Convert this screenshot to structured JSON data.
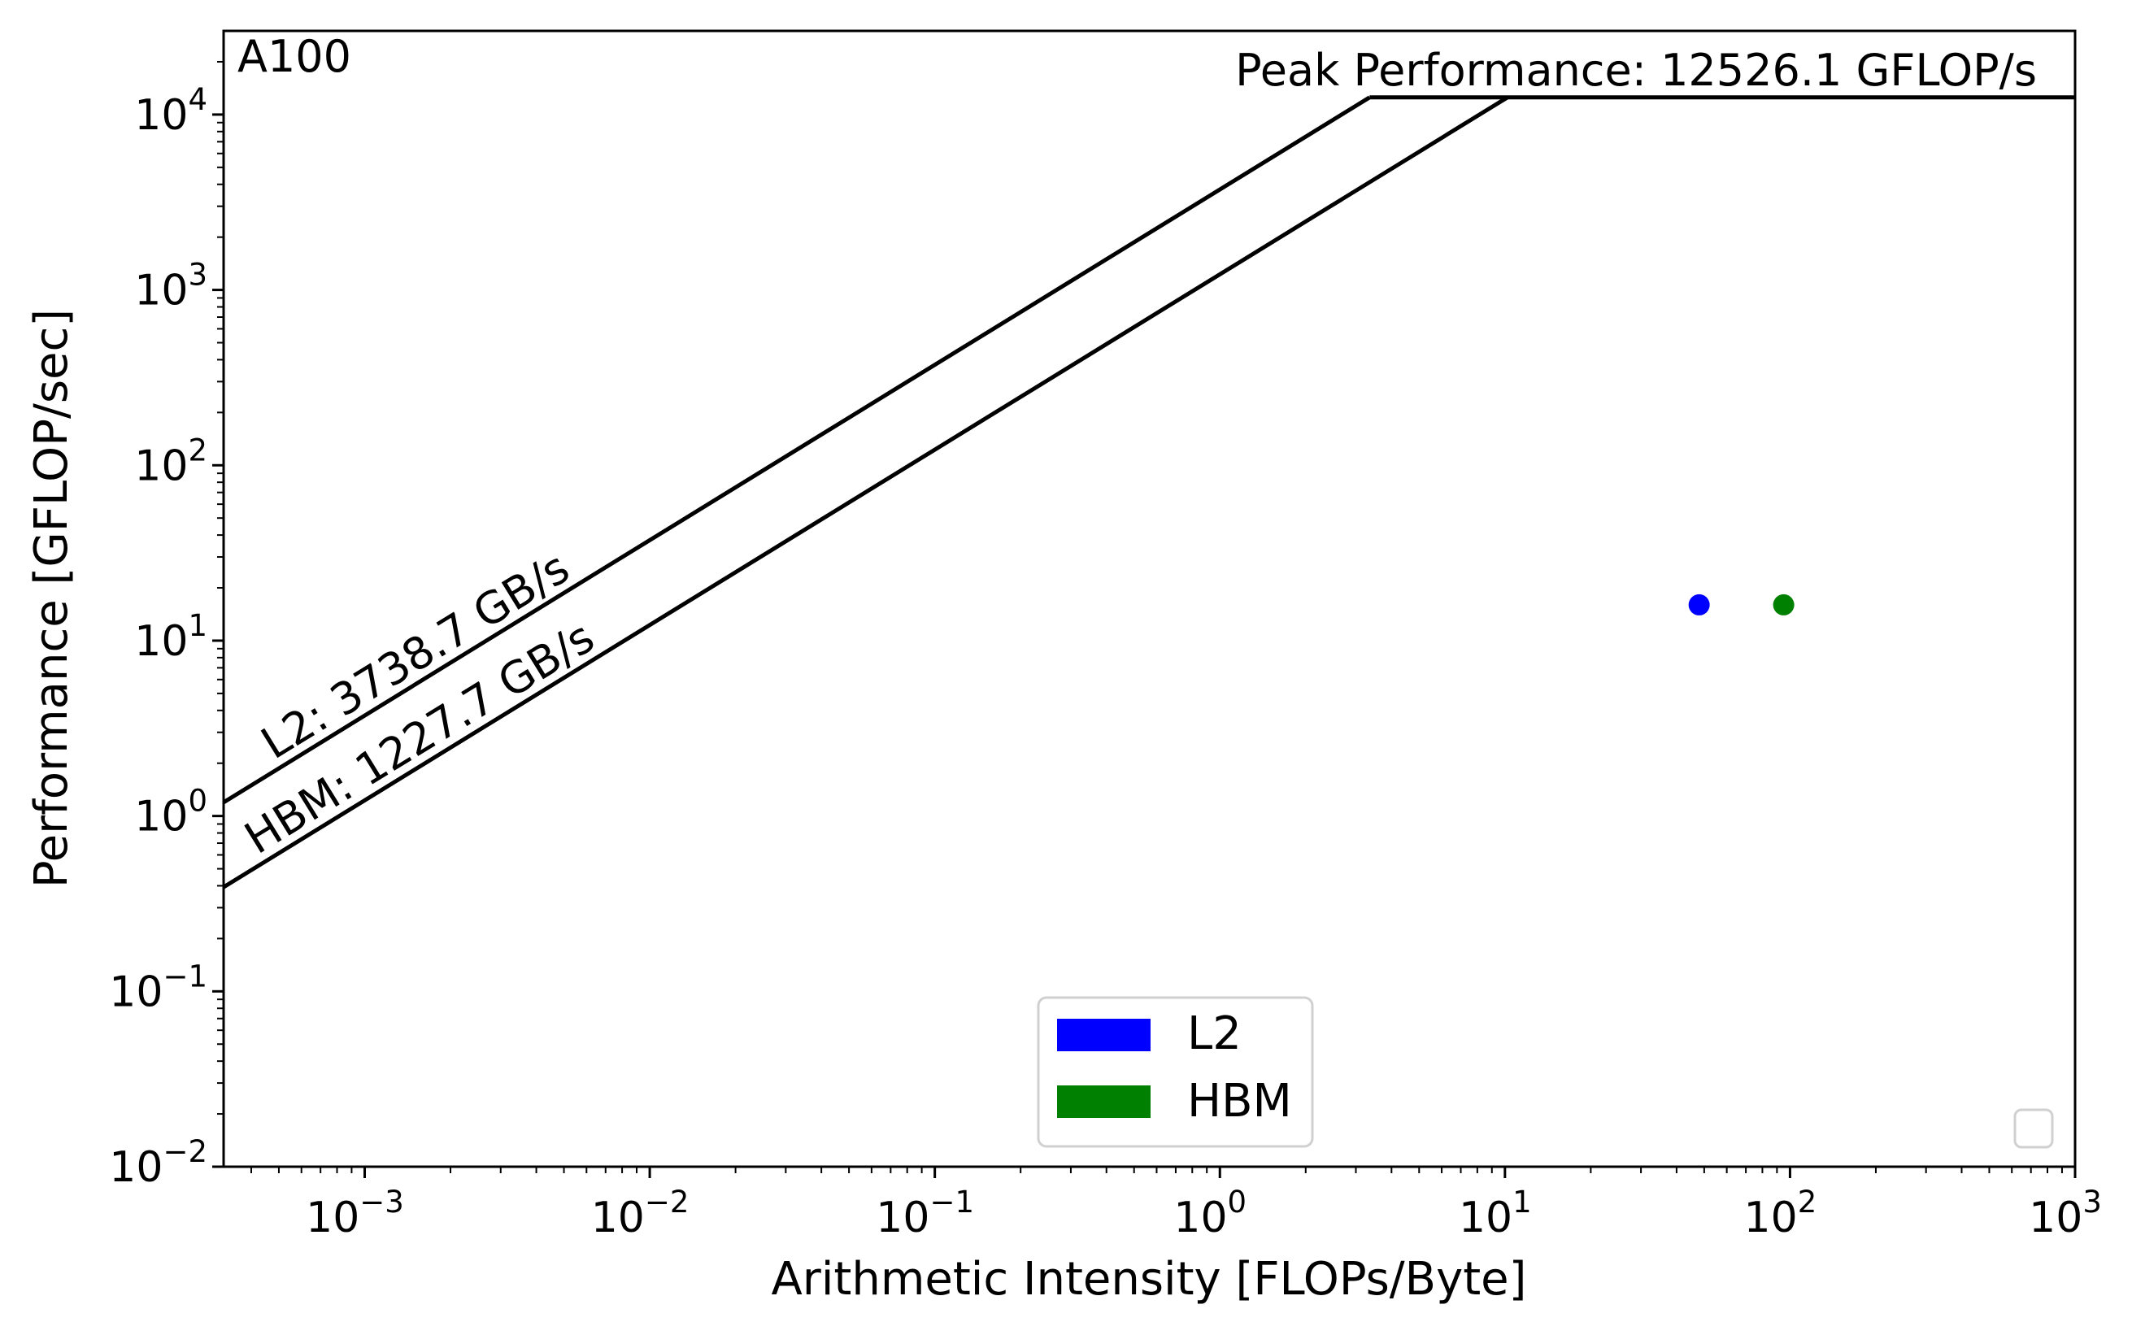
{
  "chart_data": {
    "type": "scatter",
    "subtype": "roofline",
    "title": "A100",
    "xlabel": "Arithmetic Intensity [FLOPs/Byte]",
    "ylabel": "Performance [GFLOP/sec]",
    "xscale": "log",
    "yscale": "log",
    "xlim": [
      0.00032,
      1000
    ],
    "ylim": [
      0.01,
      30000
    ],
    "x_ticks": [
      {
        "base": "10",
        "exp": "−3",
        "value": 0.001
      },
      {
        "base": "10",
        "exp": "−2",
        "value": 0.01
      },
      {
        "base": "10",
        "exp": "−1",
        "value": 0.1
      },
      {
        "base": "10",
        "exp": "0",
        "value": 1
      },
      {
        "base": "10",
        "exp": "1",
        "value": 10
      },
      {
        "base": "10",
        "exp": "2",
        "value": 100
      },
      {
        "base": "10",
        "exp": "3",
        "value": 1000
      }
    ],
    "y_ticks": [
      {
        "base": "10",
        "exp": "−2",
        "value": 0.01
      },
      {
        "base": "10",
        "exp": "−1",
        "value": 0.1
      },
      {
        "base": "10",
        "exp": "0",
        "value": 1
      },
      {
        "base": "10",
        "exp": "1",
        "value": 10
      },
      {
        "base": "10",
        "exp": "2",
        "value": 100
      },
      {
        "base": "10",
        "exp": "3",
        "value": 1000
      },
      {
        "base": "10",
        "exp": "4",
        "value": 10000
      }
    ],
    "peak": {
      "value": 12526.1,
      "label": "Peak Performance: 12526.1 GFLOP/s"
    },
    "bandwidth_lines": [
      {
        "name": "L2",
        "bandwidth": 3738.7,
        "label": "L2: 3738.7 GB/s",
        "color": "#000000"
      },
      {
        "name": "HBM",
        "bandwidth": 1227.7,
        "label": "HBM: 1227.7 GB/s",
        "color": "#000000"
      }
    ],
    "series": [
      {
        "name": "L2",
        "color": "#0000ff",
        "points": [
          {
            "x": 48,
            "y": 16
          }
        ]
      },
      {
        "name": "HBM",
        "color": "#008000",
        "points": [
          {
            "x": 95,
            "y": 16
          }
        ]
      }
    ],
    "legend": {
      "placement": "lower-center",
      "entries": [
        {
          "label": "L2",
          "color": "#0000ff"
        },
        {
          "label": "HBM",
          "color": "#008000"
        }
      ]
    },
    "empty_legend": {
      "placement": "lower-right"
    }
  }
}
